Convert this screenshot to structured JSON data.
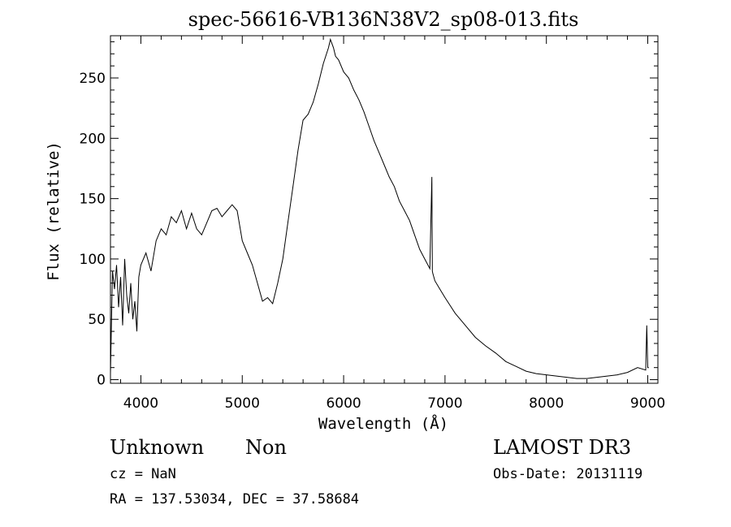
{
  "chart_data": {
    "type": "line",
    "title": "spec-56616-VB136N38V2_sp08-013.fits",
    "xlabel": "Wavelength (Å)",
    "ylabel": "Flux (relative)",
    "xlim": [
      3700,
      9100
    ],
    "ylim": [
      -3,
      285
    ],
    "x_ticks": [
      4000,
      5000,
      6000,
      7000,
      8000,
      9000
    ],
    "y_ticks": [
      0,
      50,
      100,
      150,
      200,
      250
    ],
    "grid": false,
    "series": [
      {
        "x": [
          3700,
          3720,
          3740,
          3760,
          3780,
          3800,
          3820,
          3840,
          3860,
          3880,
          3900,
          3920,
          3940,
          3960,
          3980,
          4000,
          4050,
          4100,
          4150,
          4200,
          4250,
          4300,
          4350,
          4400,
          4450,
          4500,
          4550,
          4600,
          4650,
          4700,
          4750,
          4800,
          4850,
          4900,
          4950,
          5000,
          5050,
          5100,
          5150,
          5200,
          5250,
          5300,
          5350,
          5400,
          5450,
          5500,
          5550,
          5600,
          5650,
          5700,
          5750,
          5800,
          5850,
          5870,
          5900,
          5920,
          5950,
          6000,
          6050,
          6100,
          6150,
          6200,
          6250,
          6300,
          6350,
          6400,
          6450,
          6500,
          6550,
          6600,
          6650,
          6700,
          6750,
          6800,
          6850,
          6870,
          6875,
          6880,
          6900,
          6950,
          7000,
          7100,
          7200,
          7300,
          7400,
          7500,
          7600,
          7700,
          7800,
          7900,
          8000,
          8100,
          8200,
          8300,
          8400,
          8500,
          8600,
          8700,
          8800,
          8900,
          8980,
          8990,
          9000,
          9010
        ],
        "y": [
          5,
          90,
          75,
          95,
          60,
          85,
          45,
          100,
          70,
          55,
          80,
          50,
          65,
          40,
          85,
          95,
          105,
          90,
          115,
          125,
          120,
          135,
          130,
          140,
          125,
          138,
          125,
          120,
          130,
          140,
          142,
          135,
          140,
          145,
          140,
          115,
          105,
          95,
          80,
          65,
          68,
          63,
          80,
          100,
          130,
          160,
          190,
          215,
          220,
          230,
          245,
          262,
          275,
          282,
          275,
          268,
          265,
          255,
          250,
          240,
          232,
          222,
          210,
          198,
          188,
          178,
          168,
          160,
          148,
          140,
          132,
          120,
          108,
          100,
          92,
          168,
          90,
          88,
          82,
          75,
          68,
          55,
          45,
          35,
          28,
          22,
          15,
          11,
          7,
          5,
          4,
          3,
          2,
          1,
          1,
          2,
          3,
          4,
          6,
          10,
          8,
          45,
          10,
          10
        ]
      }
    ]
  },
  "footer": {
    "object_class": "Unknown",
    "subclass": "Non",
    "survey": "LAMOST DR3",
    "cz": "cz = NaN",
    "obs_date": "Obs-Date: 20131119",
    "coords": "RA = 137.53034, DEC =  37.58684"
  }
}
